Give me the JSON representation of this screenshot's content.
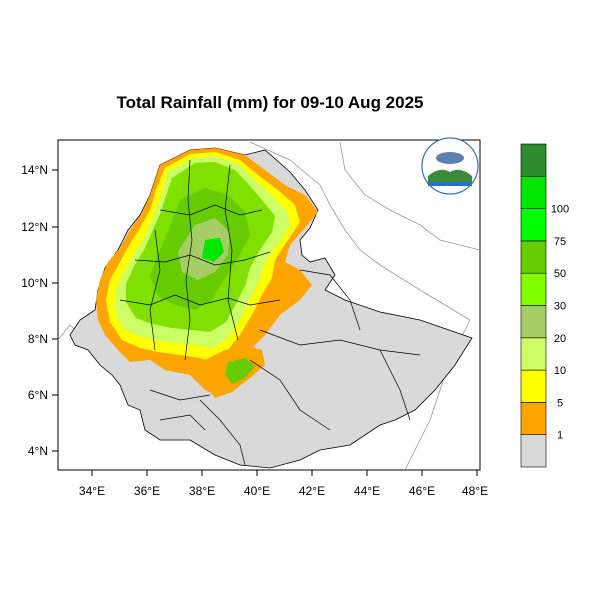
{
  "title": "Total Rainfall (mm) for 09-10 Aug 2025",
  "x_ticks": [
    "34°E",
    "36°E",
    "38°E",
    "40°E",
    "42°E",
    "44°E",
    "46°E",
    "48°E"
  ],
  "y_ticks": [
    "14°N",
    "12°N",
    "10°N",
    "8°N",
    "6°N",
    "4°N"
  ],
  "colorbar": {
    "classes": [
      {
        "color": "#d9d9d9"
      },
      {
        "color": "#ffa500"
      },
      {
        "color": "#ffff00"
      },
      {
        "color": "#ccff66"
      },
      {
        "color": "#a6cc66"
      },
      {
        "color": "#80ff00"
      },
      {
        "color": "#66cc00"
      },
      {
        "color": "#00ff00"
      },
      {
        "color": "#00e600"
      },
      {
        "color": "#2e8b2e"
      }
    ],
    "labels": [
      "1",
      "5",
      "10",
      "20",
      "30",
      "50",
      "75",
      "100"
    ]
  },
  "colors": {
    "land_other": "#d9d9d9",
    "dry": "#ffa500",
    "wet": "#80e000"
  }
}
